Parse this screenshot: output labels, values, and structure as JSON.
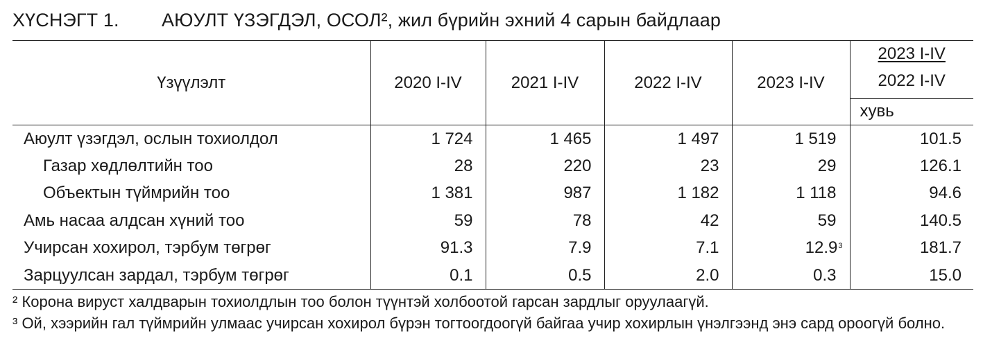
{
  "title": {
    "number": "ХҮСНЭГТ 1.",
    "text": "АЮУЛТ ҮЗЭГДЭЛ, ОСОЛ², жил бүрийн эхний 4 сарын байдлаар"
  },
  "table": {
    "headers": {
      "indicator": "Үзүүлэлт",
      "years": [
        "2020  I-IV",
        "2021 I-IV",
        "2022  I-IV",
        "2023 I-IV"
      ],
      "ratio_top": "2023  I-IV",
      "ratio_bottom": "2022  I-IV",
      "ratio_unit": "хувь"
    },
    "rows": [
      {
        "label": "Аюулт үзэгдэл, ослын тохиолдол",
        "v2020": "1 724",
        "v2021": "1 465",
        "v2022": "1 497",
        "v2023": "1 519",
        "v2023_note": "",
        "ratio": "101.5"
      },
      {
        "label": "Газар хөдлөлтийн тоо",
        "v2020": "28",
        "v2021": "220",
        "v2022": "23",
        "v2023": "29",
        "v2023_note": "",
        "ratio": "126.1"
      },
      {
        "label": "Объектын түймрийн тоо",
        "v2020": "1 381",
        "v2021": "987",
        "v2022": "1 182",
        "v2023": "1 118",
        "v2023_note": "",
        "ratio": "94.6"
      },
      {
        "label": "Амь насаа алдсан хүний тоо",
        "v2020": "59",
        "v2021": "78",
        "v2022": "42",
        "v2023": "59",
        "v2023_note": "",
        "ratio": "140.5"
      },
      {
        "label": "Учирсан хохирол, тэрбум төгрөг",
        "v2020": "91.3",
        "v2021": "7.9",
        "v2022": "7.1",
        "v2023": "12.9",
        "v2023_note": "3",
        "ratio": "181.7"
      },
      {
        "label": "Зарцуулсан зардал,  тэрбум төгрөг",
        "v2020": "0.1",
        "v2021": "0.5",
        "v2022": "2.0",
        "v2023": "0.3",
        "v2023_note": "",
        "ratio": "15.0"
      }
    ]
  },
  "footnotes": [
    "² Корона вируст халдварын тохиолдлын тоо болон түүнтэй холбоотой гарсан зардлыг оруулаагүй.",
    "³ Ой, хээрийн гал түймрийн улмаас учирсан хохирол бүрэн тогтоогдоогүй байгаа учир хохирлын үнэлгээнд энэ сард ороогүй болно."
  ]
}
